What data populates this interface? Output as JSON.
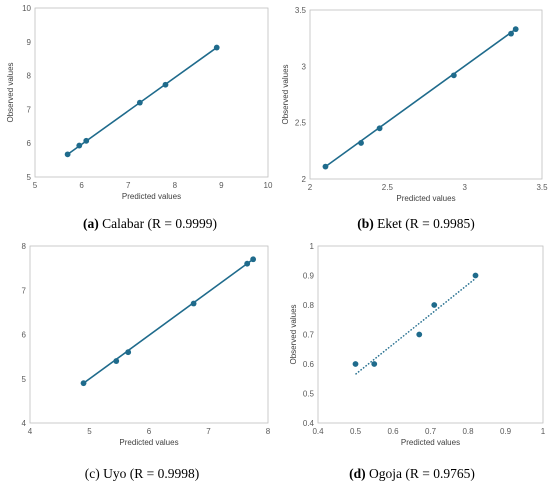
{
  "chart_data": [
    {
      "type": "scatter",
      "xlabel": "Predicted values",
      "ylabel": "Observed values",
      "xlim": [
        5,
        10
      ],
      "ylim": [
        5,
        10
      ],
      "xticks": [
        5,
        6,
        7,
        8,
        9,
        10
      ],
      "yticks": [
        5,
        6,
        7,
        8,
        9,
        10
      ],
      "grid": false,
      "trendline": "solid",
      "caption_letter": "(a)",
      "caption_text": "Calabar (R = 0.9999)",
      "color": "#1f6b8c",
      "points": [
        [
          5.7,
          5.67
        ],
        [
          5.95,
          5.93
        ],
        [
          6.1,
          6.07
        ],
        [
          7.25,
          7.2
        ],
        [
          7.8,
          7.73
        ],
        [
          8.9,
          8.83
        ]
      ],
      "fit": [
        [
          5.7,
          5.67
        ],
        [
          8.9,
          8.83
        ]
      ]
    },
    {
      "type": "scatter",
      "xlabel": "Predicted values",
      "ylabel": "Observed values",
      "xlim": [
        2,
        3.5
      ],
      "ylim": [
        2,
        3.5
      ],
      "xticks": [
        2,
        2.5,
        3,
        3.5
      ],
      "yticks": [
        2,
        2.5,
        3,
        3.5
      ],
      "grid": false,
      "trendline": "solid",
      "caption_letter": "(b)",
      "caption_text": "Eket (R = 0.9985)",
      "color": "#1f6b8c",
      "points": [
        [
          2.1,
          2.11
        ],
        [
          2.33,
          2.32
        ],
        [
          2.45,
          2.45
        ],
        [
          2.93,
          2.92
        ],
        [
          3.3,
          3.29
        ],
        [
          3.33,
          3.33
        ]
      ],
      "fit": [
        [
          2.1,
          2.11
        ],
        [
          3.33,
          3.33
        ]
      ]
    },
    {
      "type": "scatter",
      "xlabel": "Predicted values",
      "ylabel": "",
      "xlim": [
        4,
        8
      ],
      "ylim": [
        4,
        8
      ],
      "xticks": [
        4,
        5,
        6,
        7,
        8
      ],
      "yticks": [
        4,
        5,
        6,
        7,
        8
      ],
      "grid": false,
      "trendline": "solid",
      "caption_letter": "(c)",
      "caption_text": "Uyo (R = 0.9998)",
      "color": "#1f6b8c",
      "points": [
        [
          4.9,
          4.9
        ],
        [
          5.45,
          5.4
        ],
        [
          5.65,
          5.6
        ],
        [
          6.75,
          6.7
        ],
        [
          7.65,
          7.6
        ],
        [
          7.75,
          7.7
        ]
      ],
      "fit": [
        [
          4.9,
          4.9
        ],
        [
          7.75,
          7.7
        ]
      ]
    },
    {
      "type": "scatter",
      "xlabel": "Predicted values",
      "ylabel": "Observed values",
      "xlim": [
        0.4,
        1
      ],
      "ylim": [
        0.4,
        1
      ],
      "xticks": [
        0.4,
        0.5,
        0.6,
        0.7,
        0.8,
        0.9,
        1
      ],
      "yticks": [
        0.4,
        0.5,
        0.6,
        0.7,
        0.8,
        0.9,
        1
      ],
      "grid": false,
      "trendline": "dotted",
      "caption_letter": "(d)",
      "caption_text": "Ogoja (R = 0.9765)",
      "color": "#1f6b8c",
      "points": [
        [
          0.5,
          0.6
        ],
        [
          0.55,
          0.6
        ],
        [
          0.67,
          0.7
        ],
        [
          0.71,
          0.8
        ],
        [
          0.82,
          0.9
        ]
      ],
      "fit": [
        [
          0.5,
          0.565
        ],
        [
          0.82,
          0.89
        ]
      ]
    }
  ]
}
